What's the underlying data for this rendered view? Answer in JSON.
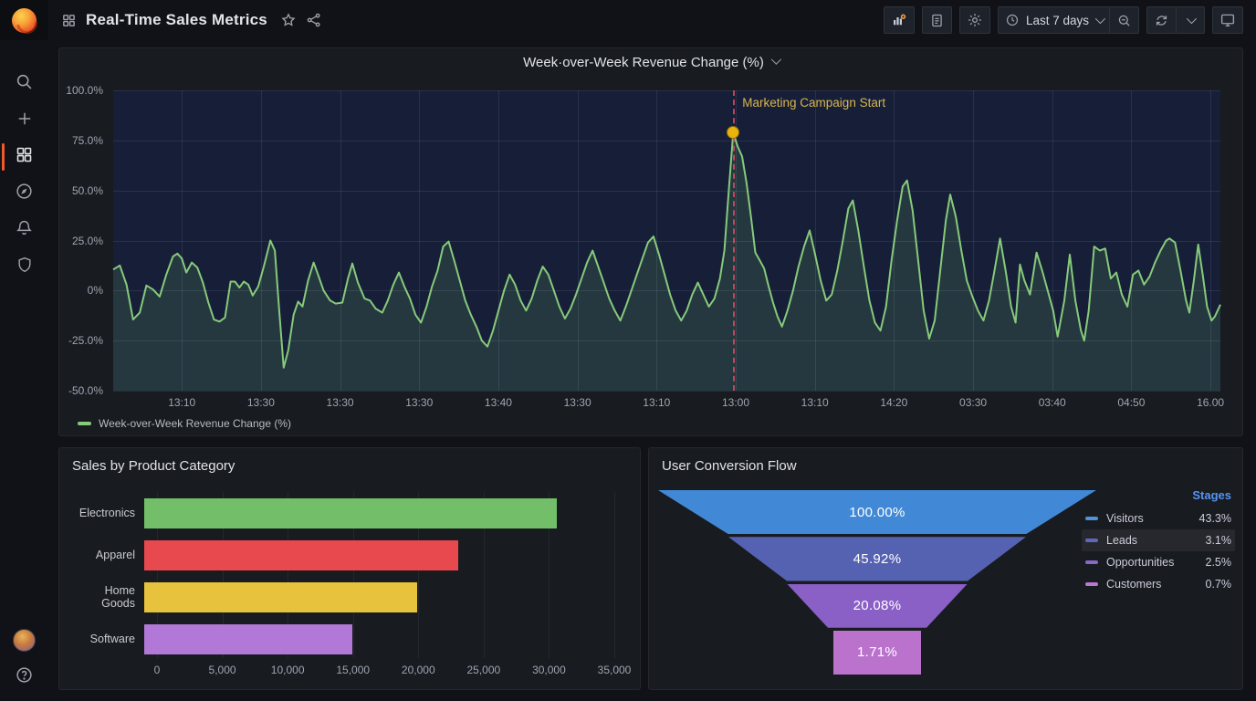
{
  "navbar": {
    "title": "Real-Time Sales Metrics",
    "time_picker": {
      "label": "Last 7 days"
    },
    "icons": [
      "apps-grid-icon",
      "star-icon",
      "share-icon",
      "add-panel-icon",
      "document-icon",
      "gear-icon",
      "clock-icon",
      "zoom-out-icon",
      "refresh-icon",
      "chevron-down-icon",
      "monitor-icon"
    ]
  },
  "sidebar": {
    "items": [
      {
        "name": "search",
        "icon": "search-icon"
      },
      {
        "name": "create",
        "icon": "plus-icon"
      },
      {
        "name": "dashboards",
        "icon": "dashboards-icon",
        "active": true
      },
      {
        "name": "explore",
        "icon": "compass-icon"
      },
      {
        "name": "alerting",
        "icon": "bell-icon"
      },
      {
        "name": "admin",
        "icon": "shield-icon"
      }
    ],
    "bottom": [
      {
        "name": "profile",
        "icon": "avatar"
      },
      {
        "name": "help",
        "icon": "question-icon",
        "glyph": "?"
      }
    ]
  },
  "chart_data": [
    {
      "id": "wow-revenue",
      "type": "line",
      "title": "Week·over-Week Revenue Change (%)",
      "legend": [
        "Week-over-Week Revenue Change (%)"
      ],
      "ylim": [
        -50,
        100
      ],
      "y_ticks": [
        "100.0%",
        "75.0%",
        "50.0%",
        "25.0%",
        "0%",
        "-25.0%",
        "-50.0%"
      ],
      "y_tick_values": [
        100,
        75,
        50,
        25,
        0,
        -25,
        -50
      ],
      "x_ticks": [
        "13:10",
        "13:30",
        "13:30",
        "13:30",
        "13:40",
        "13:30",
        "13:10",
        "13:00",
        "13:10",
        "14:20",
        "03:30",
        "03:40",
        "04:50",
        "16.00"
      ],
      "line_color": "#86ca7a",
      "fill_color": "rgba(115,191,105,0.16)",
      "plot_bg": "#171e38",
      "annotation": {
        "label": "Marketing Campaign Start",
        "x_frac": 56.0,
        "y_value": 79,
        "line_color": "rgba(219,75,95,0.85)",
        "dot_color": "#e9b30e",
        "label_color": "#d9b64c"
      },
      "points": [
        [
          0,
          10.5
        ],
        [
          0.6,
          12.5
        ],
        [
          1.2,
          3
        ],
        [
          1.8,
          -14.5
        ],
        [
          2.4,
          -11
        ],
        [
          3,
          2.5
        ],
        [
          3.6,
          0.5
        ],
        [
          4.2,
          -3
        ],
        [
          4.8,
          8
        ],
        [
          5.4,
          17
        ],
        [
          5.8,
          18.5
        ],
        [
          6.2,
          16
        ],
        [
          6.6,
          9
        ],
        [
          7.1,
          14
        ],
        [
          7.6,
          11.5
        ],
        [
          8.1,
          4
        ],
        [
          8.6,
          -6
        ],
        [
          9.1,
          -14.5
        ],
        [
          9.6,
          -15.5
        ],
        [
          10.1,
          -13.5
        ],
        [
          10.6,
          4.5
        ],
        [
          11,
          4.5
        ],
        [
          11.4,
          1.5
        ],
        [
          11.8,
          4.5
        ],
        [
          12.2,
          3
        ],
        [
          12.6,
          -2.5
        ],
        [
          13.1,
          2
        ],
        [
          13.6,
          12
        ],
        [
          14.2,
          25
        ],
        [
          14.6,
          20
        ],
        [
          15,
          -10
        ],
        [
          15.4,
          -38.5
        ],
        [
          15.8,
          -30
        ],
        [
          16.3,
          -12
        ],
        [
          16.7,
          -5.5
        ],
        [
          17.1,
          -8
        ],
        [
          17.6,
          5
        ],
        [
          18.1,
          14
        ],
        [
          18.5,
          8
        ],
        [
          19,
          0
        ],
        [
          19.6,
          -5
        ],
        [
          20.1,
          -6.5
        ],
        [
          20.7,
          -6
        ],
        [
          21.2,
          6
        ],
        [
          21.6,
          13.5
        ],
        [
          22.1,
          4
        ],
        [
          22.7,
          -4
        ],
        [
          23.2,
          -5
        ],
        [
          23.7,
          -9
        ],
        [
          24.3,
          -11
        ],
        [
          24.8,
          -5
        ],
        [
          25.3,
          3
        ],
        [
          25.8,
          9
        ],
        [
          26.3,
          2
        ],
        [
          26.8,
          -4
        ],
        [
          27.3,
          -12
        ],
        [
          27.8,
          -16
        ],
        [
          28.3,
          -8
        ],
        [
          28.8,
          2
        ],
        [
          29.3,
          10
        ],
        [
          29.8,
          22
        ],
        [
          30.3,
          24.5
        ],
        [
          30.8,
          15
        ],
        [
          31.3,
          5
        ],
        [
          31.8,
          -5
        ],
        [
          32.3,
          -12
        ],
        [
          32.8,
          -18
        ],
        [
          33.3,
          -25
        ],
        [
          33.8,
          -28
        ],
        [
          34.3,
          -20
        ],
        [
          34.8,
          -10
        ],
        [
          35.3,
          0
        ],
        [
          35.8,
          8
        ],
        [
          36.3,
          3
        ],
        [
          36.8,
          -5
        ],
        [
          37.3,
          -10
        ],
        [
          37.8,
          -4
        ],
        [
          38.3,
          5
        ],
        [
          38.8,
          12
        ],
        [
          39.3,
          8
        ],
        [
          39.8,
          0
        ],
        [
          40.3,
          -8
        ],
        [
          40.8,
          -14
        ],
        [
          41.3,
          -9
        ],
        [
          41.8,
          -2
        ],
        [
          42.3,
          6
        ],
        [
          42.8,
          14
        ],
        [
          43.3,
          20
        ],
        [
          43.8,
          12
        ],
        [
          44.3,
          4
        ],
        [
          44.8,
          -4
        ],
        [
          45.3,
          -10
        ],
        [
          45.8,
          -15
        ],
        [
          46.3,
          -8
        ],
        [
          46.8,
          0
        ],
        [
          47.3,
          8
        ],
        [
          47.8,
          16
        ],
        [
          48.3,
          24
        ],
        [
          48.8,
          27
        ],
        [
          49.3,
          18
        ],
        [
          49.8,
          8
        ],
        [
          50.3,
          -2
        ],
        [
          50.8,
          -10
        ],
        [
          51.3,
          -15
        ],
        [
          51.8,
          -10
        ],
        [
          52.3,
          -2
        ],
        [
          52.8,
          4
        ],
        [
          53.3,
          -2
        ],
        [
          53.8,
          -8
        ],
        [
          54.3,
          -4
        ],
        [
          54.8,
          6
        ],
        [
          55.2,
          20
        ],
        [
          55.6,
          50
        ],
        [
          56,
          79
        ],
        [
          56.4,
          72
        ],
        [
          56.8,
          67
        ],
        [
          57.2,
          54
        ],
        [
          57.6,
          37
        ],
        [
          58,
          19
        ],
        [
          58.4,
          15
        ],
        [
          58.8,
          11
        ],
        [
          59.2,
          2
        ],
        [
          59.6,
          -6
        ],
        [
          60,
          -13
        ],
        [
          60.4,
          -18
        ],
        [
          60.9,
          -10
        ],
        [
          61.4,
          0
        ],
        [
          61.9,
          12
        ],
        [
          62.4,
          22
        ],
        [
          62.9,
          30
        ],
        [
          63.4,
          18
        ],
        [
          63.9,
          5
        ],
        [
          64.4,
          -5
        ],
        [
          64.9,
          -2
        ],
        [
          65.4,
          10
        ],
        [
          65.9,
          25
        ],
        [
          66.4,
          41
        ],
        [
          66.8,
          45
        ],
        [
          67.3,
          30
        ],
        [
          67.8,
          12
        ],
        [
          68.3,
          -5
        ],
        [
          68.8,
          -16
        ],
        [
          69.3,
          -20
        ],
        [
          69.8,
          -8
        ],
        [
          70.3,
          15
        ],
        [
          70.8,
          35
        ],
        [
          71.3,
          52
        ],
        [
          71.7,
          55
        ],
        [
          72.2,
          40
        ],
        [
          72.7,
          15
        ],
        [
          73.2,
          -10
        ],
        [
          73.7,
          -24
        ],
        [
          74.2,
          -15
        ],
        [
          74.7,
          10
        ],
        [
          75.2,
          35
        ],
        [
          75.6,
          48
        ],
        [
          76.1,
          37
        ],
        [
          76.6,
          20
        ],
        [
          77.1,
          5
        ],
        [
          77.6,
          -3
        ],
        [
          78.1,
          -10
        ],
        [
          78.6,
          -15
        ],
        [
          79.1,
          -5
        ],
        [
          79.6,
          10
        ],
        [
          80.1,
          26
        ],
        [
          80.6,
          10
        ],
        [
          81.1,
          -8
        ],
        [
          81.5,
          -16
        ],
        [
          81.9,
          13
        ],
        [
          82.3,
          5
        ],
        [
          82.8,
          -2
        ],
        [
          83.4,
          19
        ],
        [
          83.9,
          10
        ],
        [
          84.4,
          0
        ],
        [
          84.9,
          -10
        ],
        [
          85.3,
          -23
        ],
        [
          85.9,
          -5
        ],
        [
          86.4,
          18
        ],
        [
          86.9,
          -5
        ],
        [
          87.4,
          -20
        ],
        [
          87.7,
          -25
        ],
        [
          88.1,
          -10
        ],
        [
          88.6,
          22
        ],
        [
          89.1,
          20
        ],
        [
          89.6,
          21
        ],
        [
          90.1,
          6
        ],
        [
          90.6,
          9
        ],
        [
          91.1,
          -2
        ],
        [
          91.6,
          -8
        ],
        [
          92.1,
          8
        ],
        [
          92.6,
          10
        ],
        [
          93.1,
          3
        ],
        [
          93.6,
          7
        ],
        [
          94.1,
          14
        ],
        [
          94.6,
          20
        ],
        [
          95.1,
          25
        ],
        [
          95.4,
          26
        ],
        [
          95.9,
          24
        ],
        [
          96.4,
          10
        ],
        [
          96.9,
          -5
        ],
        [
          97.2,
          -11
        ],
        [
          97.6,
          5
        ],
        [
          98,
          23
        ],
        [
          98.4,
          8
        ],
        [
          98.8,
          -8
        ],
        [
          99.2,
          -15
        ],
        [
          99.5,
          -13
        ],
        [
          100,
          -7
        ]
      ]
    },
    {
      "id": "sales-by-category",
      "type": "bar",
      "title": "Sales by Product Category",
      "categories": [
        "Electronics",
        "Apparel",
        "Home Goods",
        "Software"
      ],
      "values": [
        30750,
        23350,
        20350,
        15500
      ],
      "colors": [
        "#73bf69",
        "#e8494f",
        "#e7c23d",
        "#b278d8"
      ],
      "xlim": [
        0,
        35000
      ],
      "x_ticks": [
        "0",
        "5,000",
        "10,000",
        "15,000",
        "20,000",
        "25,000",
        "30,000",
        "35,000"
      ]
    },
    {
      "id": "conversion-funnel",
      "type": "funnel",
      "title": "User Conversion Flow",
      "stage_labels": [
        "100.00%",
        "45.92%",
        "20.08%",
        "1.71%"
      ],
      "segments": {
        "top_widths": [
          480,
          326,
          198,
          96
        ],
        "bottom_widths": [
          326,
          198,
          108,
          96
        ],
        "container_width": 480
      },
      "colors": [
        "#4189d6",
        "#5562b2",
        "#8a5fc6",
        "#bb72cd"
      ],
      "legend_title": "Stages",
      "legend": [
        {
          "label": "Visitors",
          "value": "43.3%",
          "color": "#4f94d6",
          "highlighted": false
        },
        {
          "label": "Leads",
          "value": "3.1%",
          "color": "#5d68bd",
          "highlighted": true
        },
        {
          "label": "Opportunities",
          "value": "2.5%",
          "color": "#8a67c9",
          "highlighted": false
        },
        {
          "label": "Customers",
          "value": "0.7%",
          "color": "#b978d2",
          "highlighted": false
        }
      ]
    }
  ]
}
